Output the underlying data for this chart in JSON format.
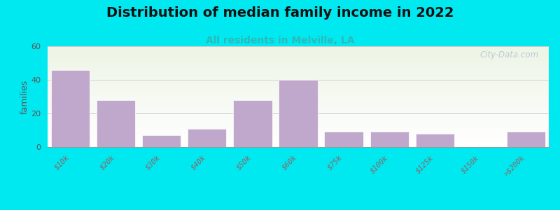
{
  "title": "Distribution of median family income in 2022",
  "subtitle": "All residents in Melville, LA",
  "categories": [
    "$10k",
    "$20k",
    "$30k",
    "$40k",
    "$50k",
    "$60k",
    "$75k",
    "$100k",
    "$125k",
    "$150k",
    ">$200k"
  ],
  "values": [
    46,
    28,
    7,
    11,
    28,
    40,
    9,
    9,
    8,
    0,
    9
  ],
  "bar_color": "#c0a8cc",
  "ylabel": "families",
  "ylim": [
    0,
    60
  ],
  "yticks": [
    0,
    20,
    40,
    60
  ],
  "background_outer": "#00e8f0",
  "title_fontsize": 14,
  "subtitle_fontsize": 10,
  "subtitle_color": "#2eb8b8",
  "watermark": "City-Data.com",
  "tick_color": "#886666",
  "ylabel_color": "#555555",
  "ytick_color": "#555555"
}
